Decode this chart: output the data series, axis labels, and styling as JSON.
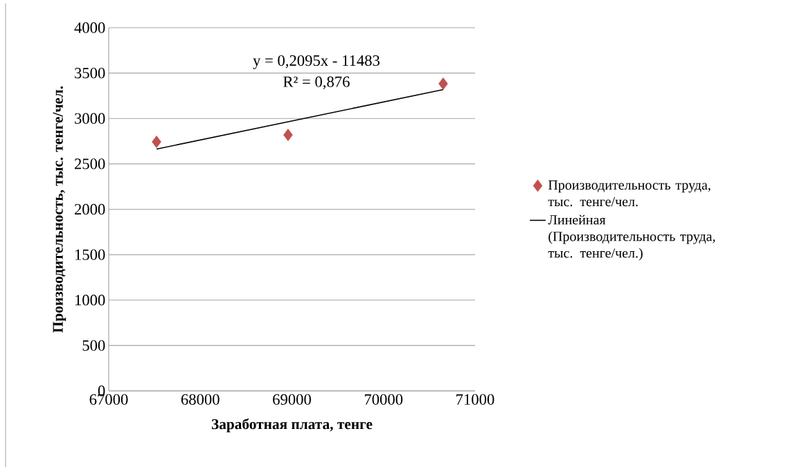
{
  "chart_data": {
    "type": "scatter",
    "xlabel": "Заработная плата, тенге",
    "ylabel": "Производительность, тыс. тенге/чел.",
    "xlim": [
      67000,
      71000
    ],
    "xticks": [
      67000,
      68000,
      69000,
      70000,
      71000
    ],
    "ylim": [
      0,
      4000
    ],
    "yticks": [
      0,
      500,
      1000,
      1500,
      2000,
      2500,
      3000,
      3500,
      4000
    ],
    "grid": "y",
    "legend": "right",
    "series": [
      {
        "name": "Производительность труда, тыс. тенге/чел.",
        "marker": "diamond",
        "color": "#c0504d",
        "x": [
          67522,
          68958,
          70652
        ],
        "values": [
          2743,
          2819,
          3383
        ]
      },
      {
        "name": "Линейная (Производительность труда, тыс. тенге/чел.)",
        "type": "line",
        "marker": "none",
        "line_style": "solid",
        "color": "#000000",
        "x": [
          67522,
          70652
        ],
        "values": [
          2663,
          3318
        ]
      }
    ],
    "annotations": [
      "y = 0,2095x - 11483",
      "R² = 0,876"
    ]
  }
}
